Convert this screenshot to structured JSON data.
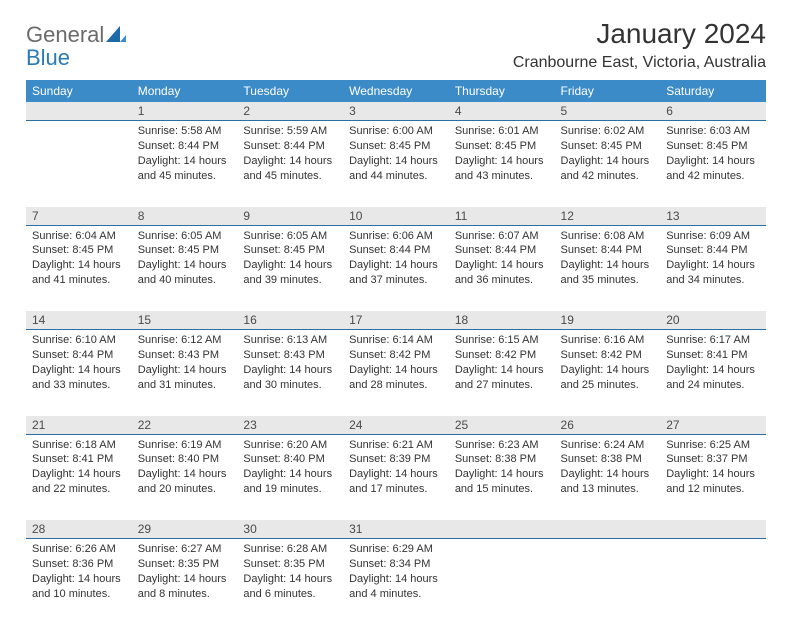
{
  "brand": {
    "word1": "General",
    "word2": "Blue"
  },
  "title": "January 2024",
  "location": "Cranbourne East, Victoria, Australia",
  "colors": {
    "header_bg": "#3b8bc9",
    "header_text": "#ffffff",
    "daynum_bg": "#e8e8e8",
    "daynum_border": "#2a6ea3",
    "body_text": "#333333",
    "logo_gray": "#6b6b6b",
    "logo_blue": "#2a7ab8",
    "page_bg": "#ffffff"
  },
  "typography": {
    "title_fontsize": 28,
    "subtitle_fontsize": 16,
    "header_fontsize": 12,
    "daynum_fontsize": 12,
    "cell_fontsize": 11
  },
  "weekdays": [
    "Sunday",
    "Monday",
    "Tuesday",
    "Wednesday",
    "Thursday",
    "Friday",
    "Saturday"
  ],
  "weeks": [
    [
      null,
      {
        "day": "1",
        "sunrise": "Sunrise: 5:58 AM",
        "sunset": "Sunset: 8:44 PM",
        "daylight": "Daylight: 14 hours and 45 minutes."
      },
      {
        "day": "2",
        "sunrise": "Sunrise: 5:59 AM",
        "sunset": "Sunset: 8:44 PM",
        "daylight": "Daylight: 14 hours and 45 minutes."
      },
      {
        "day": "3",
        "sunrise": "Sunrise: 6:00 AM",
        "sunset": "Sunset: 8:45 PM",
        "daylight": "Daylight: 14 hours and 44 minutes."
      },
      {
        "day": "4",
        "sunrise": "Sunrise: 6:01 AM",
        "sunset": "Sunset: 8:45 PM",
        "daylight": "Daylight: 14 hours and 43 minutes."
      },
      {
        "day": "5",
        "sunrise": "Sunrise: 6:02 AM",
        "sunset": "Sunset: 8:45 PM",
        "daylight": "Daylight: 14 hours and 42 minutes."
      },
      {
        "day": "6",
        "sunrise": "Sunrise: 6:03 AM",
        "sunset": "Sunset: 8:45 PM",
        "daylight": "Daylight: 14 hours and 42 minutes."
      }
    ],
    [
      {
        "day": "7",
        "sunrise": "Sunrise: 6:04 AM",
        "sunset": "Sunset: 8:45 PM",
        "daylight": "Daylight: 14 hours and 41 minutes."
      },
      {
        "day": "8",
        "sunrise": "Sunrise: 6:05 AM",
        "sunset": "Sunset: 8:45 PM",
        "daylight": "Daylight: 14 hours and 40 minutes."
      },
      {
        "day": "9",
        "sunrise": "Sunrise: 6:05 AM",
        "sunset": "Sunset: 8:45 PM",
        "daylight": "Daylight: 14 hours and 39 minutes."
      },
      {
        "day": "10",
        "sunrise": "Sunrise: 6:06 AM",
        "sunset": "Sunset: 8:44 PM",
        "daylight": "Daylight: 14 hours and 37 minutes."
      },
      {
        "day": "11",
        "sunrise": "Sunrise: 6:07 AM",
        "sunset": "Sunset: 8:44 PM",
        "daylight": "Daylight: 14 hours and 36 minutes."
      },
      {
        "day": "12",
        "sunrise": "Sunrise: 6:08 AM",
        "sunset": "Sunset: 8:44 PM",
        "daylight": "Daylight: 14 hours and 35 minutes."
      },
      {
        "day": "13",
        "sunrise": "Sunrise: 6:09 AM",
        "sunset": "Sunset: 8:44 PM",
        "daylight": "Daylight: 14 hours and 34 minutes."
      }
    ],
    [
      {
        "day": "14",
        "sunrise": "Sunrise: 6:10 AM",
        "sunset": "Sunset: 8:44 PM",
        "daylight": "Daylight: 14 hours and 33 minutes."
      },
      {
        "day": "15",
        "sunrise": "Sunrise: 6:12 AM",
        "sunset": "Sunset: 8:43 PM",
        "daylight": "Daylight: 14 hours and 31 minutes."
      },
      {
        "day": "16",
        "sunrise": "Sunrise: 6:13 AM",
        "sunset": "Sunset: 8:43 PM",
        "daylight": "Daylight: 14 hours and 30 minutes."
      },
      {
        "day": "17",
        "sunrise": "Sunrise: 6:14 AM",
        "sunset": "Sunset: 8:42 PM",
        "daylight": "Daylight: 14 hours and 28 minutes."
      },
      {
        "day": "18",
        "sunrise": "Sunrise: 6:15 AM",
        "sunset": "Sunset: 8:42 PM",
        "daylight": "Daylight: 14 hours and 27 minutes."
      },
      {
        "day": "19",
        "sunrise": "Sunrise: 6:16 AM",
        "sunset": "Sunset: 8:42 PM",
        "daylight": "Daylight: 14 hours and 25 minutes."
      },
      {
        "day": "20",
        "sunrise": "Sunrise: 6:17 AM",
        "sunset": "Sunset: 8:41 PM",
        "daylight": "Daylight: 14 hours and 24 minutes."
      }
    ],
    [
      {
        "day": "21",
        "sunrise": "Sunrise: 6:18 AM",
        "sunset": "Sunset: 8:41 PM",
        "daylight": "Daylight: 14 hours and 22 minutes."
      },
      {
        "day": "22",
        "sunrise": "Sunrise: 6:19 AM",
        "sunset": "Sunset: 8:40 PM",
        "daylight": "Daylight: 14 hours and 20 minutes."
      },
      {
        "day": "23",
        "sunrise": "Sunrise: 6:20 AM",
        "sunset": "Sunset: 8:40 PM",
        "daylight": "Daylight: 14 hours and 19 minutes."
      },
      {
        "day": "24",
        "sunrise": "Sunrise: 6:21 AM",
        "sunset": "Sunset: 8:39 PM",
        "daylight": "Daylight: 14 hours and 17 minutes."
      },
      {
        "day": "25",
        "sunrise": "Sunrise: 6:23 AM",
        "sunset": "Sunset: 8:38 PM",
        "daylight": "Daylight: 14 hours and 15 minutes."
      },
      {
        "day": "26",
        "sunrise": "Sunrise: 6:24 AM",
        "sunset": "Sunset: 8:38 PM",
        "daylight": "Daylight: 14 hours and 13 minutes."
      },
      {
        "day": "27",
        "sunrise": "Sunrise: 6:25 AM",
        "sunset": "Sunset: 8:37 PM",
        "daylight": "Daylight: 14 hours and 12 minutes."
      }
    ],
    [
      {
        "day": "28",
        "sunrise": "Sunrise: 6:26 AM",
        "sunset": "Sunset: 8:36 PM",
        "daylight": "Daylight: 14 hours and 10 minutes."
      },
      {
        "day": "29",
        "sunrise": "Sunrise: 6:27 AM",
        "sunset": "Sunset: 8:35 PM",
        "daylight": "Daylight: 14 hours and 8 minutes."
      },
      {
        "day": "30",
        "sunrise": "Sunrise: 6:28 AM",
        "sunset": "Sunset: 8:35 PM",
        "daylight": "Daylight: 14 hours and 6 minutes."
      },
      {
        "day": "31",
        "sunrise": "Sunrise: 6:29 AM",
        "sunset": "Sunset: 8:34 PM",
        "daylight": "Daylight: 14 hours and 4 minutes."
      },
      null,
      null,
      null
    ]
  ]
}
